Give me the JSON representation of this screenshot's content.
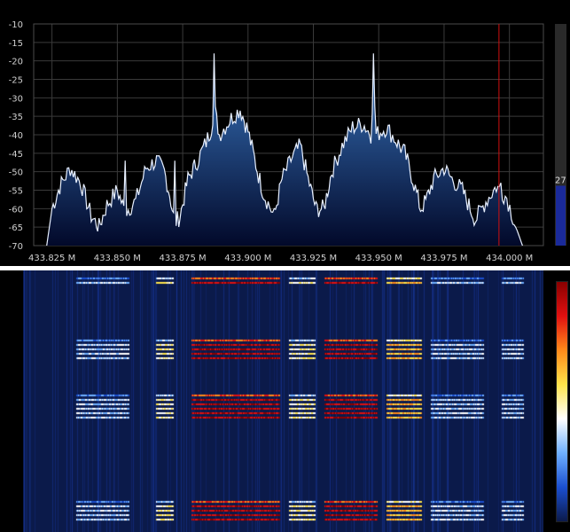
{
  "spectrum": {
    "y_axis_labels": [
      "-10",
      "-15",
      "-20",
      "-25",
      "-30",
      "-35",
      "-40",
      "-45",
      "-50",
      "-55",
      "-60",
      "-65",
      "-70"
    ],
    "y_range": [
      -70,
      -10
    ],
    "x_axis_labels": [
      "433.825 M",
      "433.850 M",
      "433.875 M",
      "433.900 M",
      "433.925 M",
      "433.950 M",
      "433.975 M",
      "434.000 M"
    ],
    "x_range_mhz": [
      433.818,
      434.013
    ],
    "marker_freq_mhz": 433.996,
    "level_value": "27",
    "level_fraction": 0.27,
    "colors": {
      "fill_top": "#3a78c2",
      "fill_bottom": "#02092a",
      "trace": "#e8f0ff",
      "grid": "#3a3a3a",
      "marker": "#d01010",
      "level_bar": "#1a2a9a"
    }
  },
  "waterfall": {
    "colormap": [
      "#0b1a4a",
      "#1b4fd0",
      "#6fb0ff",
      "#ffffff",
      "#ffe44a",
      "#ff8a1a",
      "#e01010",
      "#8a0000"
    ],
    "background": "#0b1a4a"
  },
  "chart_data": {
    "type": "area",
    "title": "",
    "xlabel": "",
    "ylabel": "",
    "xlim": [
      433.818,
      434.013
    ],
    "ylim": [
      -70,
      -10
    ],
    "grid": true,
    "x": [
      433.823,
      433.825,
      433.828,
      433.832,
      433.836,
      433.84,
      433.843,
      433.846,
      433.85,
      433.853,
      433.857,
      433.861,
      433.865,
      433.868,
      433.87,
      433.872,
      433.874,
      433.877,
      433.88,
      433.884,
      433.886,
      433.887,
      433.889,
      433.893,
      433.897,
      433.9,
      433.902,
      433.904,
      433.906,
      433.91,
      433.913,
      433.917,
      433.92,
      433.923,
      433.926,
      433.929,
      433.932,
      433.936,
      433.94,
      433.944,
      433.947,
      433.948,
      433.949,
      433.953,
      433.957,
      433.96,
      433.963,
      433.966,
      433.968,
      433.971,
      433.975,
      433.978,
      433.982,
      433.985,
      433.987,
      433.991,
      433.995,
      433.999,
      434.003,
      434.005
    ],
    "y": [
      -70,
      -60,
      -54,
      -49,
      -53,
      -62,
      -65,
      -59,
      -55,
      -61,
      -58,
      -49,
      -47,
      -50,
      -56,
      -64,
      -62,
      -52,
      -48,
      -42,
      -38,
      -32,
      -40,
      -36,
      -33,
      -39,
      -45,
      -51,
      -56,
      -62,
      -52,
      -46,
      -43,
      -52,
      -60,
      -60,
      -50,
      -43,
      -38,
      -37,
      -40,
      -24,
      -40,
      -38,
      -42,
      -45,
      -52,
      -60,
      -58,
      -52,
      -49,
      -52,
      -55,
      -60,
      -63,
      -58,
      -54,
      -57,
      -66,
      -70
    ],
    "peaks": [
      {
        "x": 433.853,
        "y": -47
      },
      {
        "x": 433.872,
        "y": -47
      },
      {
        "x": 433.887,
        "y": -18
      },
      {
        "x": 433.948,
        "y": -18
      },
      {
        "x": 433.997,
        "y": -53
      }
    ]
  }
}
